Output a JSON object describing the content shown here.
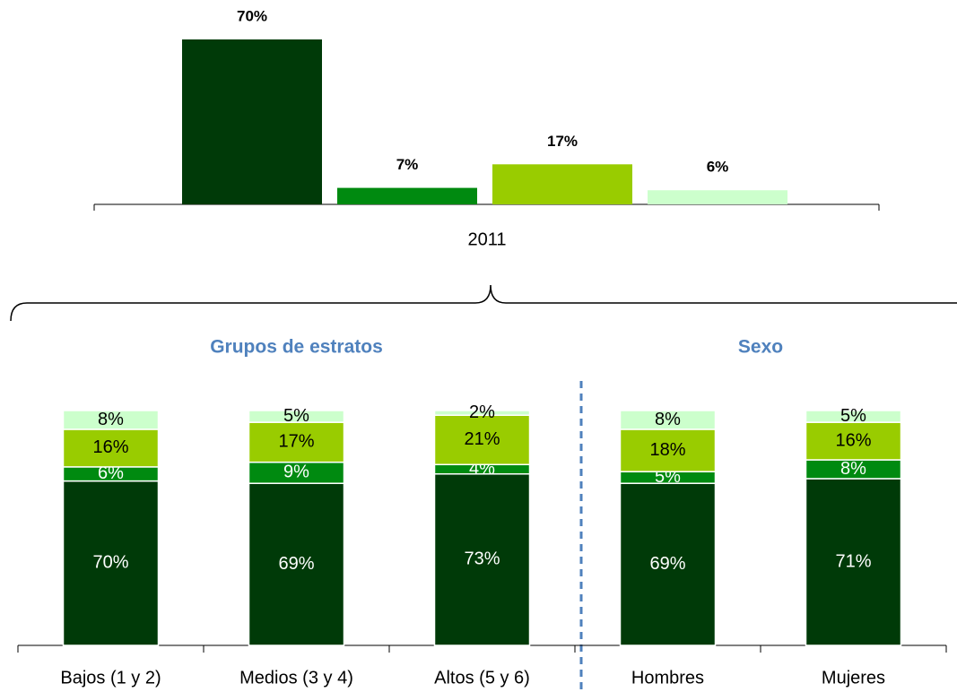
{
  "chart_data": [
    {
      "type": "bar",
      "categories": [
        "2011"
      ],
      "series": [
        {
          "color": "#003a08",
          "values": [
            70
          ],
          "value_labels": [
            "70%"
          ]
        },
        {
          "color": "#008a10",
          "values": [
            7
          ],
          "value_labels": [
            "7%"
          ]
        },
        {
          "color": "#99cc00",
          "values": [
            17
          ],
          "value_labels": [
            "17%"
          ]
        },
        {
          "color": "#ccffcc",
          "values": [
            6
          ],
          "value_labels": [
            "6%"
          ]
        }
      ]
    },
    {
      "type": "stacked_bar",
      "annotations": [
        "Grupos de estratos",
        "Sexo"
      ],
      "categories": [
        "Bajos (1 y 2)",
        "Medios (3 y 4)",
        "Altos (5 y 6)",
        "Hombres",
        "Mujeres"
      ],
      "series": [
        {
          "color": "#003a08",
          "values": [
            70,
            69,
            73,
            69,
            71
          ],
          "value_labels": [
            "70%",
            "69%",
            "73%",
            "69%",
            "71%"
          ]
        },
        {
          "color": "#008a10",
          "values": [
            6,
            9,
            4,
            5,
            8
          ],
          "value_labels": [
            "6%",
            "9%",
            "4%",
            "5%",
            "8%"
          ]
        },
        {
          "color": "#99cc00",
          "values": [
            16,
            17,
            21,
            18,
            16
          ],
          "value_labels": [
            "16%",
            "17%",
            "21%",
            "18%",
            "16%"
          ]
        },
        {
          "color": "#ccffcc",
          "values": [
            8,
            5,
            2,
            8,
            5
          ],
          "value_labels": [
            "8%",
            "5%",
            "2%",
            "8%",
            "5%"
          ]
        }
      ]
    }
  ]
}
